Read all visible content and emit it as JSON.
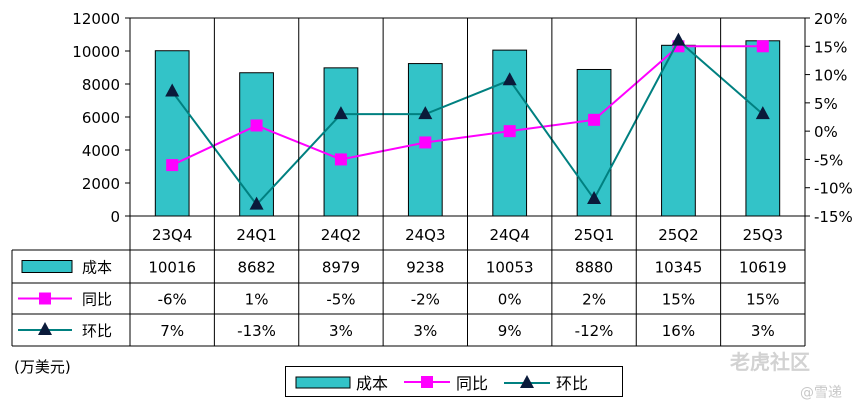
{
  "chart_data": {
    "type": "bar",
    "categories": [
      "23Q4",
      "24Q1",
      "24Q2",
      "24Q3",
      "24Q4",
      "25Q1",
      "25Q2",
      "25Q3"
    ],
    "series": [
      {
        "name": "成本",
        "type": "bar",
        "axis": "left",
        "color": "#33c3c8",
        "values": [
          10016,
          8682,
          8979,
          9238,
          10053,
          8880,
          10345,
          10619
        ],
        "labels": [
          "10016",
          "8682",
          "8979",
          "9238",
          "10053",
          "8880",
          "10345",
          "10619"
        ]
      },
      {
        "name": "同比",
        "type": "line",
        "axis": "right",
        "color": "#ff00ff",
        "marker": "square",
        "values": [
          -6,
          1,
          -5,
          -2,
          0,
          2,
          15,
          15
        ],
        "labels": [
          "-6%",
          "1%",
          "-5%",
          "-2%",
          "0%",
          "2%",
          "15%",
          "15%"
        ]
      },
      {
        "name": "环比",
        "type": "line",
        "axis": "right",
        "color": "#008080",
        "marker": "triangle",
        "values": [
          7,
          -13,
          3,
          3,
          9,
          -12,
          16,
          3
        ],
        "labels": [
          "7%",
          "-13%",
          "3%",
          "3%",
          "9%",
          "-12%",
          "16%",
          "3%"
        ]
      }
    ],
    "y_left": {
      "min": 0,
      "max": 12000,
      "ticks": [
        "0",
        "2000",
        "4000",
        "6000",
        "8000",
        "10000",
        "12000"
      ]
    },
    "y_right": {
      "min": -15,
      "max": 20,
      "ticks": [
        "-15%",
        "-10%",
        "-5%",
        "0%",
        "5%",
        "10%",
        "15%",
        "20%"
      ]
    },
    "unit_label": "(万美元)",
    "legend": [
      {
        "name": "成本",
        "icon": "bar"
      },
      {
        "name": "同比",
        "icon": "square-line"
      },
      {
        "name": "环比",
        "icon": "triangle-line"
      }
    ]
  },
  "watermark": {
    "brand": "老虎社区",
    "author": "@雪递"
  }
}
